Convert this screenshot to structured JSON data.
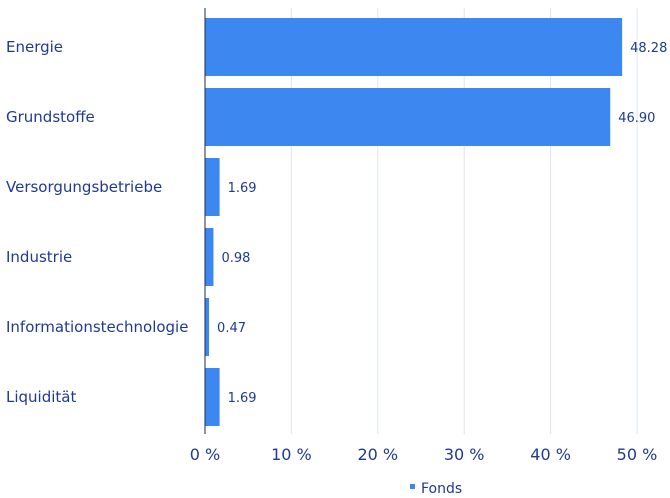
{
  "chart_data": {
    "type": "bar",
    "orientation": "horizontal",
    "categories": [
      "Energie",
      "Grundstoffe",
      "Versorgungsbetriebe",
      "Industrie",
      "Informationstechnologie",
      "Liquidität"
    ],
    "series": [
      {
        "name": "Fonds",
        "values": [
          48.28,
          46.9,
          1.69,
          0.98,
          0.47,
          1.69
        ],
        "color": "#3d87f0"
      }
    ],
    "value_labels": [
      "48.28",
      "46.90",
      "1.69",
      "0.98",
      "0.47",
      "1.69"
    ],
    "xlim": [
      0,
      50
    ],
    "x_ticks": [
      0,
      10,
      20,
      30,
      40,
      50
    ],
    "x_tick_labels": [
      "0 %",
      "10 %",
      "20 %",
      "30 %",
      "40 %",
      "50 %"
    ],
    "grid": true,
    "legend": "bottom-center",
    "colors": {
      "bar": "#3d87f0",
      "text": "#1f3a93",
      "grid": "#dde6f5",
      "axis": "#1a2a50"
    }
  }
}
